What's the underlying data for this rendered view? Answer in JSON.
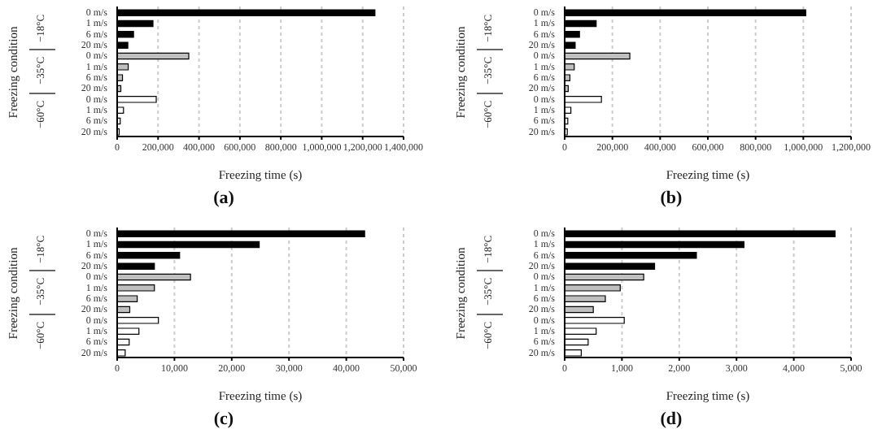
{
  "chart_data": [
    {
      "type": "bar",
      "orientation": "horizontal",
      "stacked": true,
      "title": "(a)",
      "xlabel": "Freezing time (s)",
      "ylabel": "Freezing condition",
      "grid": "x",
      "annotations": [
        "−18°C",
        "−35°C",
        "−60°C"
      ],
      "categories": [
        "0 m/s",
        "1 m/s",
        "6 m/s",
        "20 m/s",
        "0 m/s",
        "1 m/s",
        "6 m/s",
        "20 m/s",
        "0 m/s",
        "1 m/s",
        "6 m/s",
        "20 m/s"
      ],
      "xlim": [
        0,
        1400000
      ],
      "xticks": [
        {
          "value": 0,
          "label": "0"
        },
        {
          "value": 200000,
          "label": "200,000"
        },
        {
          "value": 400000,
          "label": "400,000"
        },
        {
          "value": 600000,
          "label": "600,000"
        },
        {
          "value": 800000,
          "label": "800,000"
        },
        {
          "value": 1000000,
          "label": "1,000,000"
        },
        {
          "value": 1200000,
          "label": "1,200,000"
        },
        {
          "value": 1400000,
          "label": "1,400,000"
        }
      ],
      "series": [
        {
          "color": "#000000",
          "values": [
            1260000,
            175000,
            80000,
            52000,
            null,
            null,
            null,
            null,
            null,
            null,
            null,
            null
          ]
        },
        {
          "color": "#bfbfbf",
          "values": [
            null,
            null,
            null,
            null,
            350000,
            54000,
            26000,
            18000,
            null,
            null,
            null,
            null
          ]
        },
        {
          "color": "#ffffff",
          "values": [
            null,
            null,
            null,
            null,
            null,
            null,
            null,
            null,
            191000,
            31000,
            15000,
            10000
          ]
        }
      ]
    },
    {
      "type": "bar",
      "orientation": "horizontal",
      "stacked": true,
      "title": "(b)",
      "xlabel": "Freezing time (s)",
      "ylabel": "Freezing condition",
      "grid": "x",
      "annotations": [
        "−18°C",
        "−35°C",
        "−60°C"
      ],
      "categories": [
        "0 m/s",
        "1 m/s",
        "6 m/s",
        "20 m/s",
        "0 m/s",
        "1 m/s",
        "6 m/s",
        "20 m/s",
        "0 m/s",
        "1 m/s",
        "6 m/s",
        "20 m/s"
      ],
      "xlim": [
        0,
        1200000
      ],
      "xticks": [
        {
          "value": 0,
          "label": "0"
        },
        {
          "value": 200000,
          "label": "200,000"
        },
        {
          "value": 400000,
          "label": "400,000"
        },
        {
          "value": 600000,
          "label": "600,000"
        },
        {
          "value": 800000,
          "label": "800,000"
        },
        {
          "value": 1000000,
          "label": "1,000,000"
        },
        {
          "value": 1200000,
          "label": "1,200,000"
        }
      ],
      "series": [
        {
          "color": "#000000",
          "values": [
            1010000,
            132000,
            62000,
            44000,
            null,
            null,
            null,
            null,
            null,
            null,
            null,
            null
          ]
        },
        {
          "color": "#bfbfbf",
          "values": [
            null,
            null,
            null,
            null,
            273000,
            40000,
            22000,
            15000,
            null,
            null,
            null,
            null
          ]
        },
        {
          "color": "#ffffff",
          "values": [
            null,
            null,
            null,
            null,
            null,
            null,
            null,
            null,
            154000,
            26000,
            13000,
            11000
          ]
        }
      ]
    },
    {
      "type": "bar",
      "orientation": "horizontal",
      "stacked": true,
      "title": "(c)",
      "xlabel": "Freezing time (s)",
      "ylabel": "Freezing condition",
      "grid": "x",
      "annotations": [
        "−18°C",
        "−35°C",
        "−60°C"
      ],
      "categories": [
        "0 m/s",
        "1 m/s",
        "6 m/s",
        "20 m/s",
        "0 m/s",
        "1 m/s",
        "6 m/s",
        "20 m/s",
        "0 m/s",
        "1 m/s",
        "6 m/s",
        "20 m/s"
      ],
      "xlim": [
        0,
        50000
      ],
      "xticks": [
        {
          "value": 0,
          "label": "0"
        },
        {
          "value": 10000,
          "label": "10,000"
        },
        {
          "value": 20000,
          "label": "20,000"
        },
        {
          "value": 30000,
          "label": "30,000"
        },
        {
          "value": 40000,
          "label": "40,000"
        },
        {
          "value": 50000,
          "label": "50,000"
        }
      ],
      "series": [
        {
          "color": "#000000",
          "values": [
            43200,
            24800,
            10900,
            6500,
            null,
            null,
            null,
            null,
            null,
            null,
            null,
            null
          ]
        },
        {
          "color": "#bfbfbf",
          "values": [
            null,
            null,
            null,
            null,
            12800,
            6500,
            3500,
            2200,
            null,
            null,
            null,
            null
          ]
        },
        {
          "color": "#ffffff",
          "values": [
            null,
            null,
            null,
            null,
            null,
            null,
            null,
            null,
            7200,
            3800,
            2100,
            1400
          ]
        }
      ]
    },
    {
      "type": "bar",
      "orientation": "horizontal",
      "stacked": true,
      "title": "(d)",
      "xlabel": "Freezing time (s)",
      "ylabel": "Freezing condition",
      "grid": "x",
      "annotations": [
        "−18°C",
        "−35°C",
        "−60°C"
      ],
      "categories": [
        "0 m/s",
        "1 m/s",
        "6 m/s",
        "20 m/s",
        "0 m/s",
        "1 m/s",
        "6 m/s",
        "20 m/s",
        "0 m/s",
        "1 m/s",
        "6 m/s",
        "20 m/s"
      ],
      "xlim": [
        0,
        5000
      ],
      "xticks": [
        {
          "value": 0,
          "label": "0"
        },
        {
          "value": 1000,
          "label": "1,000"
        },
        {
          "value": 2000,
          "label": "2,000"
        },
        {
          "value": 3000,
          "label": "3,000"
        },
        {
          "value": 4000,
          "label": "4,000"
        },
        {
          "value": 5000,
          "label": "5,000"
        }
      ],
      "series": [
        {
          "color": "#000000",
          "values": [
            4720,
            3130,
            2300,
            1570,
            null,
            null,
            null,
            null,
            null,
            null,
            null,
            null
          ]
        },
        {
          "color": "#bfbfbf",
          "values": [
            null,
            null,
            null,
            null,
            1380,
            970,
            710,
            500,
            null,
            null,
            null,
            null
          ]
        },
        {
          "color": "#ffffff",
          "values": [
            null,
            null,
            null,
            null,
            null,
            null,
            null,
            null,
            1040,
            550,
            410,
            290
          ]
        }
      ]
    }
  ]
}
